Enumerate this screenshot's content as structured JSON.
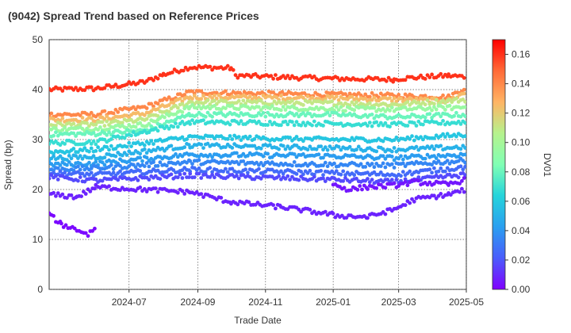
{
  "chart_data": {
    "type": "scatter",
    "title": "(9042)   Spread Trend based on Reference Prices",
    "xlabel": "Trade Date",
    "ylabel": "Spread (bp)",
    "x_range": [
      "2024-04-20",
      "2025-05-01"
    ],
    "ylim": [
      0,
      50
    ],
    "x_ticks": [
      "2024-07",
      "2024-09",
      "2024-11",
      "2025-01",
      "2025-03",
      "2025-05"
    ],
    "y_ticks": [
      0,
      10,
      20,
      30,
      40,
      50
    ],
    "grid": true,
    "colorbar": {
      "label": "DV01",
      "range": [
        0,
        0.17
      ],
      "ticks": [
        "0.00",
        "0.02",
        "0.04",
        "0.06",
        "0.08",
        "0.10",
        "0.12",
        "0.14",
        "0.16"
      ],
      "colormap": "rainbow"
    },
    "series": [
      {
        "dv01": 0.16,
        "values": [
          [
            "2024-04-20",
            40.0
          ],
          [
            "2024-06-01",
            40.2
          ],
          [
            "2024-07-15",
            41.5
          ],
          [
            "2024-08-01",
            43.0
          ],
          [
            "2024-08-25",
            44.5
          ],
          [
            "2024-10-01",
            44.3
          ],
          [
            "2024-10-05",
            42.8
          ],
          [
            "2024-11-15",
            42.5
          ],
          [
            "2024-12-31",
            42.2
          ],
          [
            "2025-01-01",
            42.2
          ],
          [
            "2025-02-25",
            42.0
          ],
          [
            "2025-03-01",
            42.2
          ],
          [
            "2025-04-15",
            42.8
          ],
          [
            "2025-05-01",
            42.5
          ]
        ]
      },
      {
        "dv01": 0.14,
        "values": [
          [
            "2024-04-20",
            35.0
          ],
          [
            "2024-06-01",
            35.0
          ],
          [
            "2024-07-15",
            36.5
          ],
          [
            "2024-08-25",
            39.5
          ],
          [
            "2024-10-01",
            39.3
          ],
          [
            "2024-12-31",
            39.0
          ],
          [
            "2025-02-25",
            38.8
          ],
          [
            "2025-04-15",
            38.5
          ],
          [
            "2025-05-01",
            40.5
          ]
        ]
      },
      {
        "dv01": 0.125,
        "values": [
          [
            "2024-04-20",
            34.0
          ],
          [
            "2024-06-01",
            34.0
          ],
          [
            "2024-07-15",
            35.2
          ],
          [
            "2024-08-25",
            38.5
          ],
          [
            "2024-12-31",
            38.3
          ],
          [
            "2025-02-25",
            38.0
          ],
          [
            "2025-04-15",
            37.8
          ],
          [
            "2025-05-01",
            39.5
          ]
        ]
      },
      {
        "dv01": 0.11,
        "values": [
          [
            "2024-04-20",
            33.0
          ],
          [
            "2024-06-01",
            33.0
          ],
          [
            "2024-07-15",
            34.0
          ],
          [
            "2024-08-25",
            37.5
          ],
          [
            "2024-12-31",
            37.3
          ],
          [
            "2025-02-25",
            37.0
          ],
          [
            "2025-05-01",
            38.0
          ]
        ]
      },
      {
        "dv01": 0.095,
        "values": [
          [
            "2024-04-20",
            32.0
          ],
          [
            "2024-06-01",
            32.2
          ],
          [
            "2024-07-15",
            33.0
          ],
          [
            "2024-08-25",
            36.5
          ],
          [
            "2024-12-31",
            36.2
          ],
          [
            "2025-02-25",
            36.0
          ],
          [
            "2025-05-01",
            36.5
          ]
        ]
      },
      {
        "dv01": 0.08,
        "values": [
          [
            "2024-04-20",
            31.0
          ],
          [
            "2024-06-01",
            31.2
          ],
          [
            "2024-07-15",
            31.8
          ],
          [
            "2024-08-25",
            35.0
          ],
          [
            "2024-12-31",
            35.0
          ],
          [
            "2025-02-25",
            34.5
          ],
          [
            "2025-05-01",
            35.0
          ]
        ]
      },
      {
        "dv01": 0.068,
        "values": [
          [
            "2024-04-20",
            29.3
          ],
          [
            "2024-06-01",
            29.5
          ],
          [
            "2024-08-25",
            33.5
          ],
          [
            "2024-12-31",
            33.2
          ],
          [
            "2025-02-25",
            33.0
          ],
          [
            "2025-05-01",
            33.5
          ]
        ]
      },
      {
        "dv01": 0.058,
        "values": [
          [
            "2024-04-20",
            27.5
          ],
          [
            "2024-06-01",
            28.0
          ],
          [
            "2024-08-25",
            30.5
          ],
          [
            "2024-12-31",
            30.0
          ],
          [
            "2025-02-25",
            30.0
          ],
          [
            "2025-05-01",
            31.0
          ]
        ]
      },
      {
        "dv01": 0.05,
        "values": [
          [
            "2024-04-20",
            26.3
          ],
          [
            "2024-06-01",
            26.5
          ],
          [
            "2024-08-25",
            28.8
          ],
          [
            "2024-12-31",
            28.3
          ],
          [
            "2025-02-25",
            28.0
          ],
          [
            "2025-05-01",
            28.5
          ]
        ]
      },
      {
        "dv01": 0.042,
        "values": [
          [
            "2024-04-20",
            25.0
          ],
          [
            "2024-06-01",
            25.2
          ],
          [
            "2024-08-25",
            27.0
          ],
          [
            "2024-12-31",
            26.7
          ],
          [
            "2025-02-25",
            26.3
          ],
          [
            "2025-05-01",
            27.0
          ]
        ]
      },
      {
        "dv01": 0.035,
        "values": [
          [
            "2024-04-20",
            24.0
          ],
          [
            "2024-06-01",
            24.3
          ],
          [
            "2024-08-25",
            25.5
          ],
          [
            "2024-12-31",
            25.0
          ],
          [
            "2025-02-25",
            24.8
          ],
          [
            "2025-05-01",
            25.8
          ]
        ]
      },
      {
        "dv01": 0.026,
        "values": [
          [
            "2024-04-20",
            23.3
          ],
          [
            "2024-06-01",
            23.0
          ],
          [
            "2024-08-25",
            24.0
          ],
          [
            "2024-12-31",
            23.3
          ],
          [
            "2025-02-25",
            23.0
          ],
          [
            "2025-05-01",
            24.5
          ]
        ]
      },
      {
        "dv01": 0.017,
        "values": [
          [
            "2024-04-20",
            22.5
          ],
          [
            "2024-06-01",
            21.8
          ],
          [
            "2024-08-25",
            22.8
          ],
          [
            "2024-12-31",
            22.0
          ],
          [
            "2025-02-25",
            21.5
          ],
          [
            "2025-05-01",
            23.0
          ]
        ]
      },
      {
        "dv01": 0.008,
        "values": [
          [
            "2024-04-20",
            19.0
          ],
          [
            "2024-05-15",
            18.5
          ],
          [
            "2024-06-01",
            20.5
          ],
          [
            "2024-08-25",
            19.5
          ],
          [
            "2024-10-01",
            17.5
          ],
          [
            "2024-11-15",
            16.5
          ],
          [
            "2024-12-31",
            15.0
          ],
          [
            "2025-01-01",
            14.8
          ],
          [
            "2025-02-01",
            14.5
          ],
          [
            "2025-02-25",
            16.0
          ],
          [
            "2025-03-15",
            18.0
          ],
          [
            "2025-04-15",
            19.0
          ],
          [
            "2025-05-01",
            20.0
          ]
        ]
      },
      {
        "dv01": 0.002,
        "values": [
          [
            "2024-04-20",
            15.0
          ],
          [
            "2024-05-01",
            13.0
          ],
          [
            "2024-05-15",
            12.0
          ],
          [
            "2024-05-25",
            11.0
          ],
          [
            "2024-06-01",
            12.5
          ]
        ]
      },
      {
        "dv01": 0.005,
        "values": [
          [
            "2025-01-01",
            21.0
          ],
          [
            "2025-01-15",
            20.0
          ],
          [
            "2025-02-01",
            20.5
          ],
          [
            "2025-02-25",
            20.8
          ],
          [
            "2025-03-15",
            21.5
          ],
          [
            "2025-04-15",
            21.0
          ],
          [
            "2025-05-01",
            22.0
          ]
        ]
      }
    ]
  }
}
